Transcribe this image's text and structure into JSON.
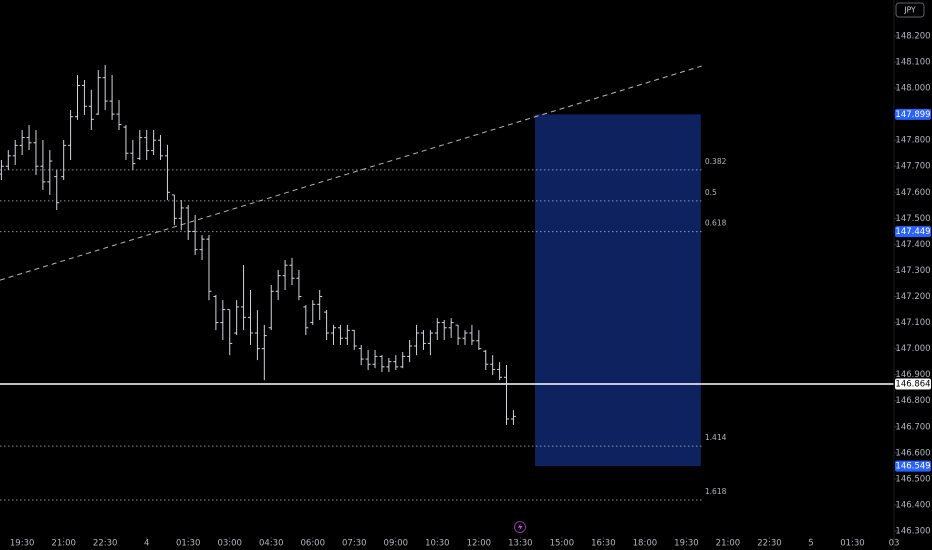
{
  "chart_data": {
    "type": "ohlc",
    "symbol": "JPY",
    "bar_color": "#d1d4dc",
    "x": [
      18.75,
      19,
      19.25,
      19.5,
      19.75,
      20,
      20.25,
      20.5,
      20.75,
      21,
      21.25,
      21.5,
      21.75,
      22,
      22.25,
      22.5,
      22.75,
      23,
      23.25,
      23.5,
      23.75,
      24,
      24.25,
      24.5,
      24.75,
      25,
      25.25,
      25.5,
      25.75,
      26,
      26.25,
      26.5,
      26.75,
      27,
      27.25,
      27.5,
      27.75,
      28,
      28.25,
      28.5,
      28.75,
      29,
      29.25,
      29.5,
      29.75,
      30,
      30.25,
      30.5,
      30.75,
      31,
      31.25,
      31.5,
      31.75,
      32,
      32.25,
      32.5,
      32.75,
      33,
      33.25,
      33.5,
      33.75,
      34,
      34.25,
      34.5,
      34.75,
      35,
      35.25,
      35.5,
      35.75,
      36,
      36.25,
      36.5,
      36.75,
      37,
      37.25
    ],
    "ohlc": [
      [
        147.67,
        147.724,
        147.647,
        147.7
      ],
      [
        147.7,
        147.762,
        147.686,
        147.74
      ],
      [
        147.74,
        147.801,
        147.705,
        147.78
      ],
      [
        147.78,
        147.839,
        147.743,
        147.81
      ],
      [
        147.81,
        147.858,
        147.762,
        147.79
      ],
      [
        147.79,
        147.839,
        147.666,
        147.7
      ],
      [
        147.7,
        147.801,
        147.609,
        147.64
      ],
      [
        147.64,
        147.762,
        147.59,
        147.72
      ],
      [
        147.66,
        147.686,
        147.532,
        147.56
      ],
      [
        147.66,
        147.801,
        147.647,
        147.78
      ],
      [
        147.78,
        147.916,
        147.724,
        147.89
      ],
      [
        147.89,
        148.05,
        147.878,
        148.01
      ],
      [
        148.01,
        148.031,
        147.897,
        147.93
      ],
      [
        147.93,
        147.993,
        147.839,
        147.88
      ],
      [
        147.9,
        148.069,
        147.897,
        148.04
      ],
      [
        148.04,
        148.089,
        147.916,
        147.95
      ],
      [
        147.95,
        148.05,
        147.878,
        147.9
      ],
      [
        147.9,
        147.954,
        147.839,
        147.86
      ],
      [
        147.85,
        147.858,
        147.724,
        147.75
      ],
      [
        147.75,
        147.801,
        147.686,
        147.71
      ],
      [
        147.73,
        147.839,
        147.724,
        147.81
      ],
      [
        147.81,
        147.839,
        147.724,
        147.76
      ],
      [
        147.76,
        147.839,
        147.743,
        147.8
      ],
      [
        147.8,
        147.82,
        147.724,
        147.74
      ],
      [
        147.74,
        147.782,
        147.57,
        147.6
      ],
      [
        147.59,
        147.59,
        147.474,
        147.5
      ],
      [
        147.5,
        147.57,
        147.455,
        147.54
      ],
      [
        147.54,
        147.551,
        147.417,
        147.45
      ],
      [
        147.45,
        147.513,
        147.359,
        147.38
      ],
      [
        147.38,
        147.436,
        147.34,
        147.42
      ],
      [
        147.42,
        147.436,
        147.186,
        147.22
      ],
      [
        147.2,
        147.206,
        147.071,
        147.1
      ],
      [
        147.1,
        147.186,
        147.033,
        147.15
      ],
      [
        147.15,
        147.148,
        146.975,
        147.02
      ],
      [
        147.06,
        147.186,
        147.052,
        147.16
      ],
      [
        147.16,
        147.321,
        147.071,
        147.12
      ],
      [
        147.12,
        147.225,
        147.014,
        147.06
      ],
      [
        147.06,
        147.148,
        146.956,
        147.0
      ],
      [
        147.0,
        147.091,
        146.879,
        147.05
      ],
      [
        147.08,
        147.244,
        147.071,
        147.22
      ],
      [
        147.22,
        147.302,
        147.186,
        147.28
      ],
      [
        147.28,
        147.34,
        147.225,
        147.32
      ],
      [
        147.32,
        147.348,
        147.244,
        147.27
      ],
      [
        147.27,
        147.302,
        147.186,
        147.2
      ],
      [
        147.16,
        147.167,
        147.052,
        147.08
      ],
      [
        147.1,
        147.186,
        147.091,
        147.17
      ],
      [
        147.17,
        147.225,
        147.11,
        147.2
      ],
      [
        147.14,
        147.148,
        147.033,
        147.06
      ],
      [
        147.06,
        147.091,
        147.014,
        147.08
      ],
      [
        147.08,
        147.091,
        147.014,
        147.04
      ],
      [
        147.04,
        147.091,
        147.014,
        147.07
      ],
      [
        147.07,
        147.071,
        146.995,
        147.01
      ],
      [
        147.0,
        147.014,
        146.937,
        146.96
      ],
      [
        146.96,
        146.995,
        146.918,
        146.94
      ],
      [
        146.94,
        146.995,
        146.925,
        146.97
      ],
      [
        146.97,
        146.975,
        146.91,
        146.93
      ],
      [
        146.93,
        146.964,
        146.91,
        146.95
      ],
      [
        146.95,
        146.975,
        146.918,
        146.93
      ],
      [
        146.93,
        146.987,
        146.925,
        146.97
      ],
      [
        146.97,
        147.033,
        146.948,
        147.01
      ],
      [
        147.01,
        147.091,
        146.975,
        147.06
      ],
      [
        147.06,
        147.071,
        146.995,
        147.02
      ],
      [
        147.02,
        147.071,
        146.975,
        147.06
      ],
      [
        147.06,
        147.117,
        147.033,
        147.1
      ],
      [
        147.1,
        147.11,
        147.033,
        147.08
      ],
      [
        147.08,
        147.117,
        147.041,
        147.1
      ],
      [
        147.09,
        147.091,
        147.014,
        147.04
      ],
      [
        147.04,
        147.071,
        147.014,
        147.06
      ],
      [
        147.06,
        147.091,
        147.014,
        147.03
      ],
      [
        147.03,
        147.071,
        146.995,
        147.0
      ],
      [
        146.99,
        146.995,
        146.918,
        146.94
      ],
      [
        146.94,
        146.975,
        146.899,
        146.92
      ],
      [
        146.92,
        146.948,
        146.879,
        146.89
      ],
      [
        146.89,
        146.937,
        146.707,
        146.73
      ],
      [
        146.73,
        146.764,
        146.707,
        146.74
      ]
    ],
    "xlim": [
      18.7,
      51.0
    ],
    "ylim": [
      146.277,
      148.338
    ],
    "xticks": [
      {
        "value": 19.5,
        "label": "19:30"
      },
      {
        "value": 21,
        "label": "21:00"
      },
      {
        "value": 22.5,
        "label": "22:30"
      },
      {
        "value": 24,
        "label": "4"
      },
      {
        "value": 25.5,
        "label": "01:30"
      },
      {
        "value": 27,
        "label": "03:00"
      },
      {
        "value": 28.5,
        "label": "04:30"
      },
      {
        "value": 30,
        "label": "06:00"
      },
      {
        "value": 31.5,
        "label": "07:30"
      },
      {
        "value": 33,
        "label": "09:00"
      },
      {
        "value": 34.5,
        "label": "10:30"
      },
      {
        "value": 36,
        "label": "12:00"
      },
      {
        "value": 37.5,
        "label": "13:30"
      },
      {
        "value": 39,
        "label": "15:00"
      },
      {
        "value": 40.5,
        "label": "16:30"
      },
      {
        "value": 42,
        "label": "18:00"
      },
      {
        "value": 43.5,
        "label": "19:30"
      },
      {
        "value": 45,
        "label": "21:00"
      },
      {
        "value": 46.5,
        "label": "22:30"
      },
      {
        "value": 48,
        "label": "5"
      },
      {
        "value": 49.5,
        "label": "01:30"
      },
      {
        "value": 51,
        "label": "03"
      }
    ],
    "yticks": [
      {
        "value": 148.2,
        "label": "148.200"
      },
      {
        "value": 148.1,
        "label": "148.100"
      },
      {
        "value": 148.0,
        "label": "148.000"
      },
      {
        "value": 147.9,
        "label": "147.900"
      },
      {
        "value": 147.8,
        "label": "147.800"
      },
      {
        "value": 147.7,
        "label": "147.700"
      },
      {
        "value": 147.6,
        "label": "147.600"
      },
      {
        "value": 147.5,
        "label": "147.500"
      },
      {
        "value": 147.4,
        "label": "147.400"
      },
      {
        "value": 147.3,
        "label": "147.300"
      },
      {
        "value": 147.2,
        "label": "147.200"
      },
      {
        "value": 147.1,
        "label": "147.100"
      },
      {
        "value": 147.0,
        "label": "147.000"
      },
      {
        "value": 146.9,
        "label": "146.900"
      },
      {
        "value": 146.8,
        "label": "146.800"
      },
      {
        "value": 146.7,
        "label": "146.700"
      },
      {
        "value": 146.6,
        "label": "146.600"
      },
      {
        "value": 146.5,
        "label": "146.500"
      },
      {
        "value": 146.4,
        "label": "146.400"
      },
      {
        "value": 146.3,
        "label": "146.300"
      }
    ],
    "trendline": {
      "x": [
        18.7,
        44.06
      ],
      "y": [
        147.263,
        148.085
      ],
      "color": "#b2b5be"
    },
    "fib_levels": {
      "x": [
        18.7,
        44.06
      ],
      "color": "#b2b5be",
      "levels": [
        {
          "value": 147.686,
          "label": "0.382"
        },
        {
          "value": 147.567,
          "label": "0.5"
        },
        {
          "value": 147.449,
          "label": "0.618",
          "axis_label": "147.449"
        },
        {
          "value": 146.626,
          "label": "1.414"
        },
        {
          "value": 146.419,
          "label": "1.618"
        }
      ]
    },
    "zone": {
      "x": [
        38.03,
        44.02
      ],
      "color": "#0f2465",
      "tag_color": "#2962ff",
      "top": {
        "value": 147.899,
        "label": "147.899"
      },
      "bottom": {
        "value": 146.549,
        "label": "146.549"
      }
    },
    "price_line": {
      "value": 146.864,
      "label": "146.864",
      "color": "#ffffff"
    }
  }
}
